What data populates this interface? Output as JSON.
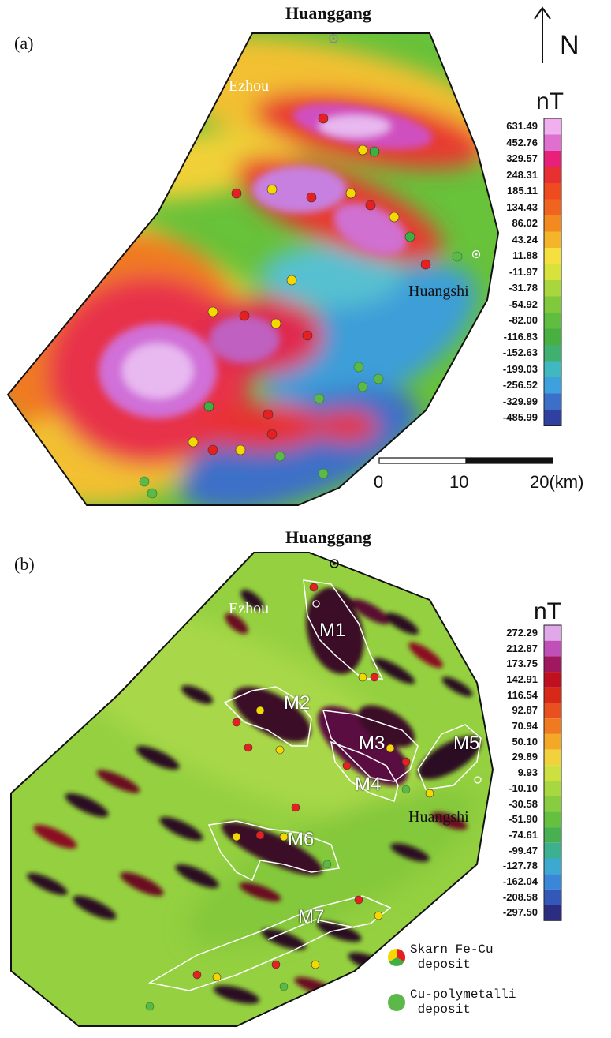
{
  "panel_a": {
    "label": "(a)",
    "top_city": "Huanggang",
    "cities": [
      "Ezhou",
      "Huangshi"
    ],
    "unit": "nT",
    "colorbar_ticks": [
      "631.49",
      "452.76",
      "329.57",
      "248.31",
      "185.11",
      "134.43",
      "86.02",
      "43.24",
      "11.88",
      "-11.97",
      "-31.78",
      "-54.92",
      "-82.00",
      "-116.83",
      "-152.63",
      "-199.03",
      "-256.52",
      "-329.99",
      "-485.99"
    ],
    "colorbar_colors": [
      "#f0b0f0",
      "#e070d0",
      "#e8207a",
      "#e83030",
      "#f04a20",
      "#f06420",
      "#f28a20",
      "#f5b52a",
      "#f5e040",
      "#d8e23c",
      "#a8d63c",
      "#80c83c",
      "#5fbe40",
      "#48b040",
      "#40b070",
      "#40b8c0",
      "#3ea0dc",
      "#3c70c8",
      "#3040a0"
    ],
    "scale_labels": [
      "0",
      "10",
      "20(km)"
    ],
    "north_letter": "N"
  },
  "panel_b": {
    "label": "(b)",
    "top_city": "Huanggang",
    "cities": [
      "Ezhou",
      "Huangshi"
    ],
    "unit": "nT",
    "colorbar_ticks": [
      "272.29",
      "212.87",
      "173.75",
      "142.91",
      "116.54",
      "92.87",
      "70.94",
      "50.10",
      "29.89",
      "9.93",
      "-10.10",
      "-30.58",
      "-51.90",
      "-74.61",
      "-99.47",
      "-127.78",
      "-162.04",
      "-208.58",
      "-297.50"
    ],
    "colorbar_colors": [
      "#e0a8e8",
      "#c050b8",
      "#a01860",
      "#c01020",
      "#d82818",
      "#e85020",
      "#f07a20",
      "#f4a828",
      "#f2d23c",
      "#cde040",
      "#a8d840",
      "#88cc40",
      "#66c040",
      "#48b050",
      "#3cb090",
      "#3caad0",
      "#3a86d8",
      "#3458b8",
      "#2c2c80"
    ],
    "zones": [
      "M1",
      "M2",
      "M3",
      "M4",
      "M5",
      "M6",
      "M7"
    ]
  },
  "legend": {
    "items": [
      {
        "label": "Skarn Fe-Cu\n deposit",
        "icon": "skarn-fe-cu-deposit-icon"
      },
      {
        "label": "Cu-polymetalli\n deposit",
        "icon": "cu-polymetallic-deposit-icon"
      }
    ]
  },
  "colors": {
    "skarn_red": "#e62020",
    "skarn_yellow": "#f5d800",
    "skarn_green": "#3cb040",
    "cu_green": "#5cb848"
  }
}
